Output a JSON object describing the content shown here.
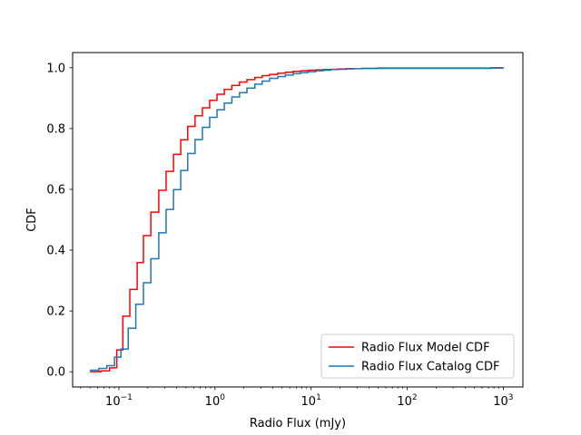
{
  "chart_data": {
    "type": "line",
    "step": true,
    "title": "",
    "xlabel": "Radio Flux (mJy)",
    "ylabel": "CDF",
    "xscale": "log",
    "xlim": [
      0.033,
      1600
    ],
    "ylim": [
      -0.05,
      1.05
    ],
    "grid": false,
    "legend_position": "lower-right",
    "x_ticks": [
      {
        "value": 0.1,
        "base": "10",
        "exp": "−1"
      },
      {
        "value": 1,
        "base": "10",
        "exp": "0"
      },
      {
        "value": 10,
        "base": "10",
        "exp": "1"
      },
      {
        "value": 100,
        "base": "10",
        "exp": "2"
      },
      {
        "value": 1000,
        "base": "10",
        "exp": "3"
      }
    ],
    "y_ticks": [
      {
        "value": 0.0,
        "label": "0.0"
      },
      {
        "value": 0.2,
        "label": "0.2"
      },
      {
        "value": 0.4,
        "label": "0.4"
      },
      {
        "value": 0.6,
        "label": "0.6"
      },
      {
        "value": 0.8,
        "label": "0.8"
      },
      {
        "value": 1.0,
        "label": "1.0"
      }
    ],
    "series": [
      {
        "name": "Radio Flux Model CDF",
        "color": "#ff0000",
        "x": [
          0.05,
          0.065,
          0.08,
          0.095,
          0.11,
          0.13,
          0.155,
          0.18,
          0.215,
          0.26,
          0.31,
          0.37,
          0.44,
          0.52,
          0.62,
          0.74,
          0.88,
          1.05,
          1.25,
          1.5,
          1.8,
          2.15,
          2.6,
          3.1,
          3.7,
          4.5,
          5.4,
          6.5,
          7.8,
          9.3,
          11.2,
          13.5,
          16,
          19,
          23,
          28,
          34,
          41,
          49,
          59,
          70,
          84,
          100,
          120,
          145,
          175,
          210,
          250,
          300,
          360,
          430,
          520,
          620,
          750,
          900,
          1000
        ],
        "y": [
          0.0,
          0.003,
          0.013,
          0.072,
          0.183,
          0.271,
          0.359,
          0.448,
          0.525,
          0.597,
          0.659,
          0.715,
          0.763,
          0.807,
          0.842,
          0.868,
          0.893,
          0.913,
          0.929,
          0.942,
          0.953,
          0.961,
          0.968,
          0.974,
          0.978,
          0.982,
          0.985,
          0.988,
          0.99,
          0.992,
          0.993,
          0.994,
          0.995,
          0.996,
          0.997,
          0.997,
          0.998,
          0.998,
          0.999,
          0.999,
          0.999,
          0.999,
          0.999,
          0.999,
          0.999,
          0.999,
          0.999,
          0.999,
          0.999,
          0.999,
          0.999,
          0.999,
          0.999,
          1.0,
          1.0,
          1.0
        ]
      },
      {
        "name": "Radio Flux Catalog CDF",
        "color": "#1f77b4",
        "x": [
          0.05,
          0.062,
          0.075,
          0.09,
          0.105,
          0.125,
          0.15,
          0.18,
          0.215,
          0.26,
          0.31,
          0.37,
          0.44,
          0.52,
          0.62,
          0.74,
          0.88,
          1.05,
          1.25,
          1.5,
          1.8,
          2.15,
          2.6,
          3.1,
          3.7,
          4.5,
          5.4,
          6.5,
          7.8,
          9.3,
          11.2,
          13.5,
          16,
          19,
          23,
          28,
          34,
          41,
          49,
          59,
          70,
          84,
          100,
          120,
          145,
          175,
          210,
          250,
          300,
          360,
          430,
          520,
          620,
          750,
          900,
          1000
        ],
        "y": [
          0.005,
          0.011,
          0.02,
          0.048,
          0.075,
          0.143,
          0.222,
          0.293,
          0.372,
          0.457,
          0.534,
          0.599,
          0.662,
          0.718,
          0.764,
          0.804,
          0.837,
          0.862,
          0.884,
          0.904,
          0.918,
          0.933,
          0.946,
          0.956,
          0.965,
          0.971,
          0.976,
          0.981,
          0.984,
          0.987,
          0.99,
          0.992,
          0.994,
          0.995,
          0.996,
          0.997,
          0.998,
          0.998,
          0.998,
          0.998,
          0.998,
          0.998,
          0.998,
          0.998,
          0.998,
          0.998,
          0.998,
          0.998,
          0.998,
          0.998,
          0.998,
          0.998,
          0.998,
          0.999,
          0.999,
          1.0
        ]
      }
    ]
  }
}
